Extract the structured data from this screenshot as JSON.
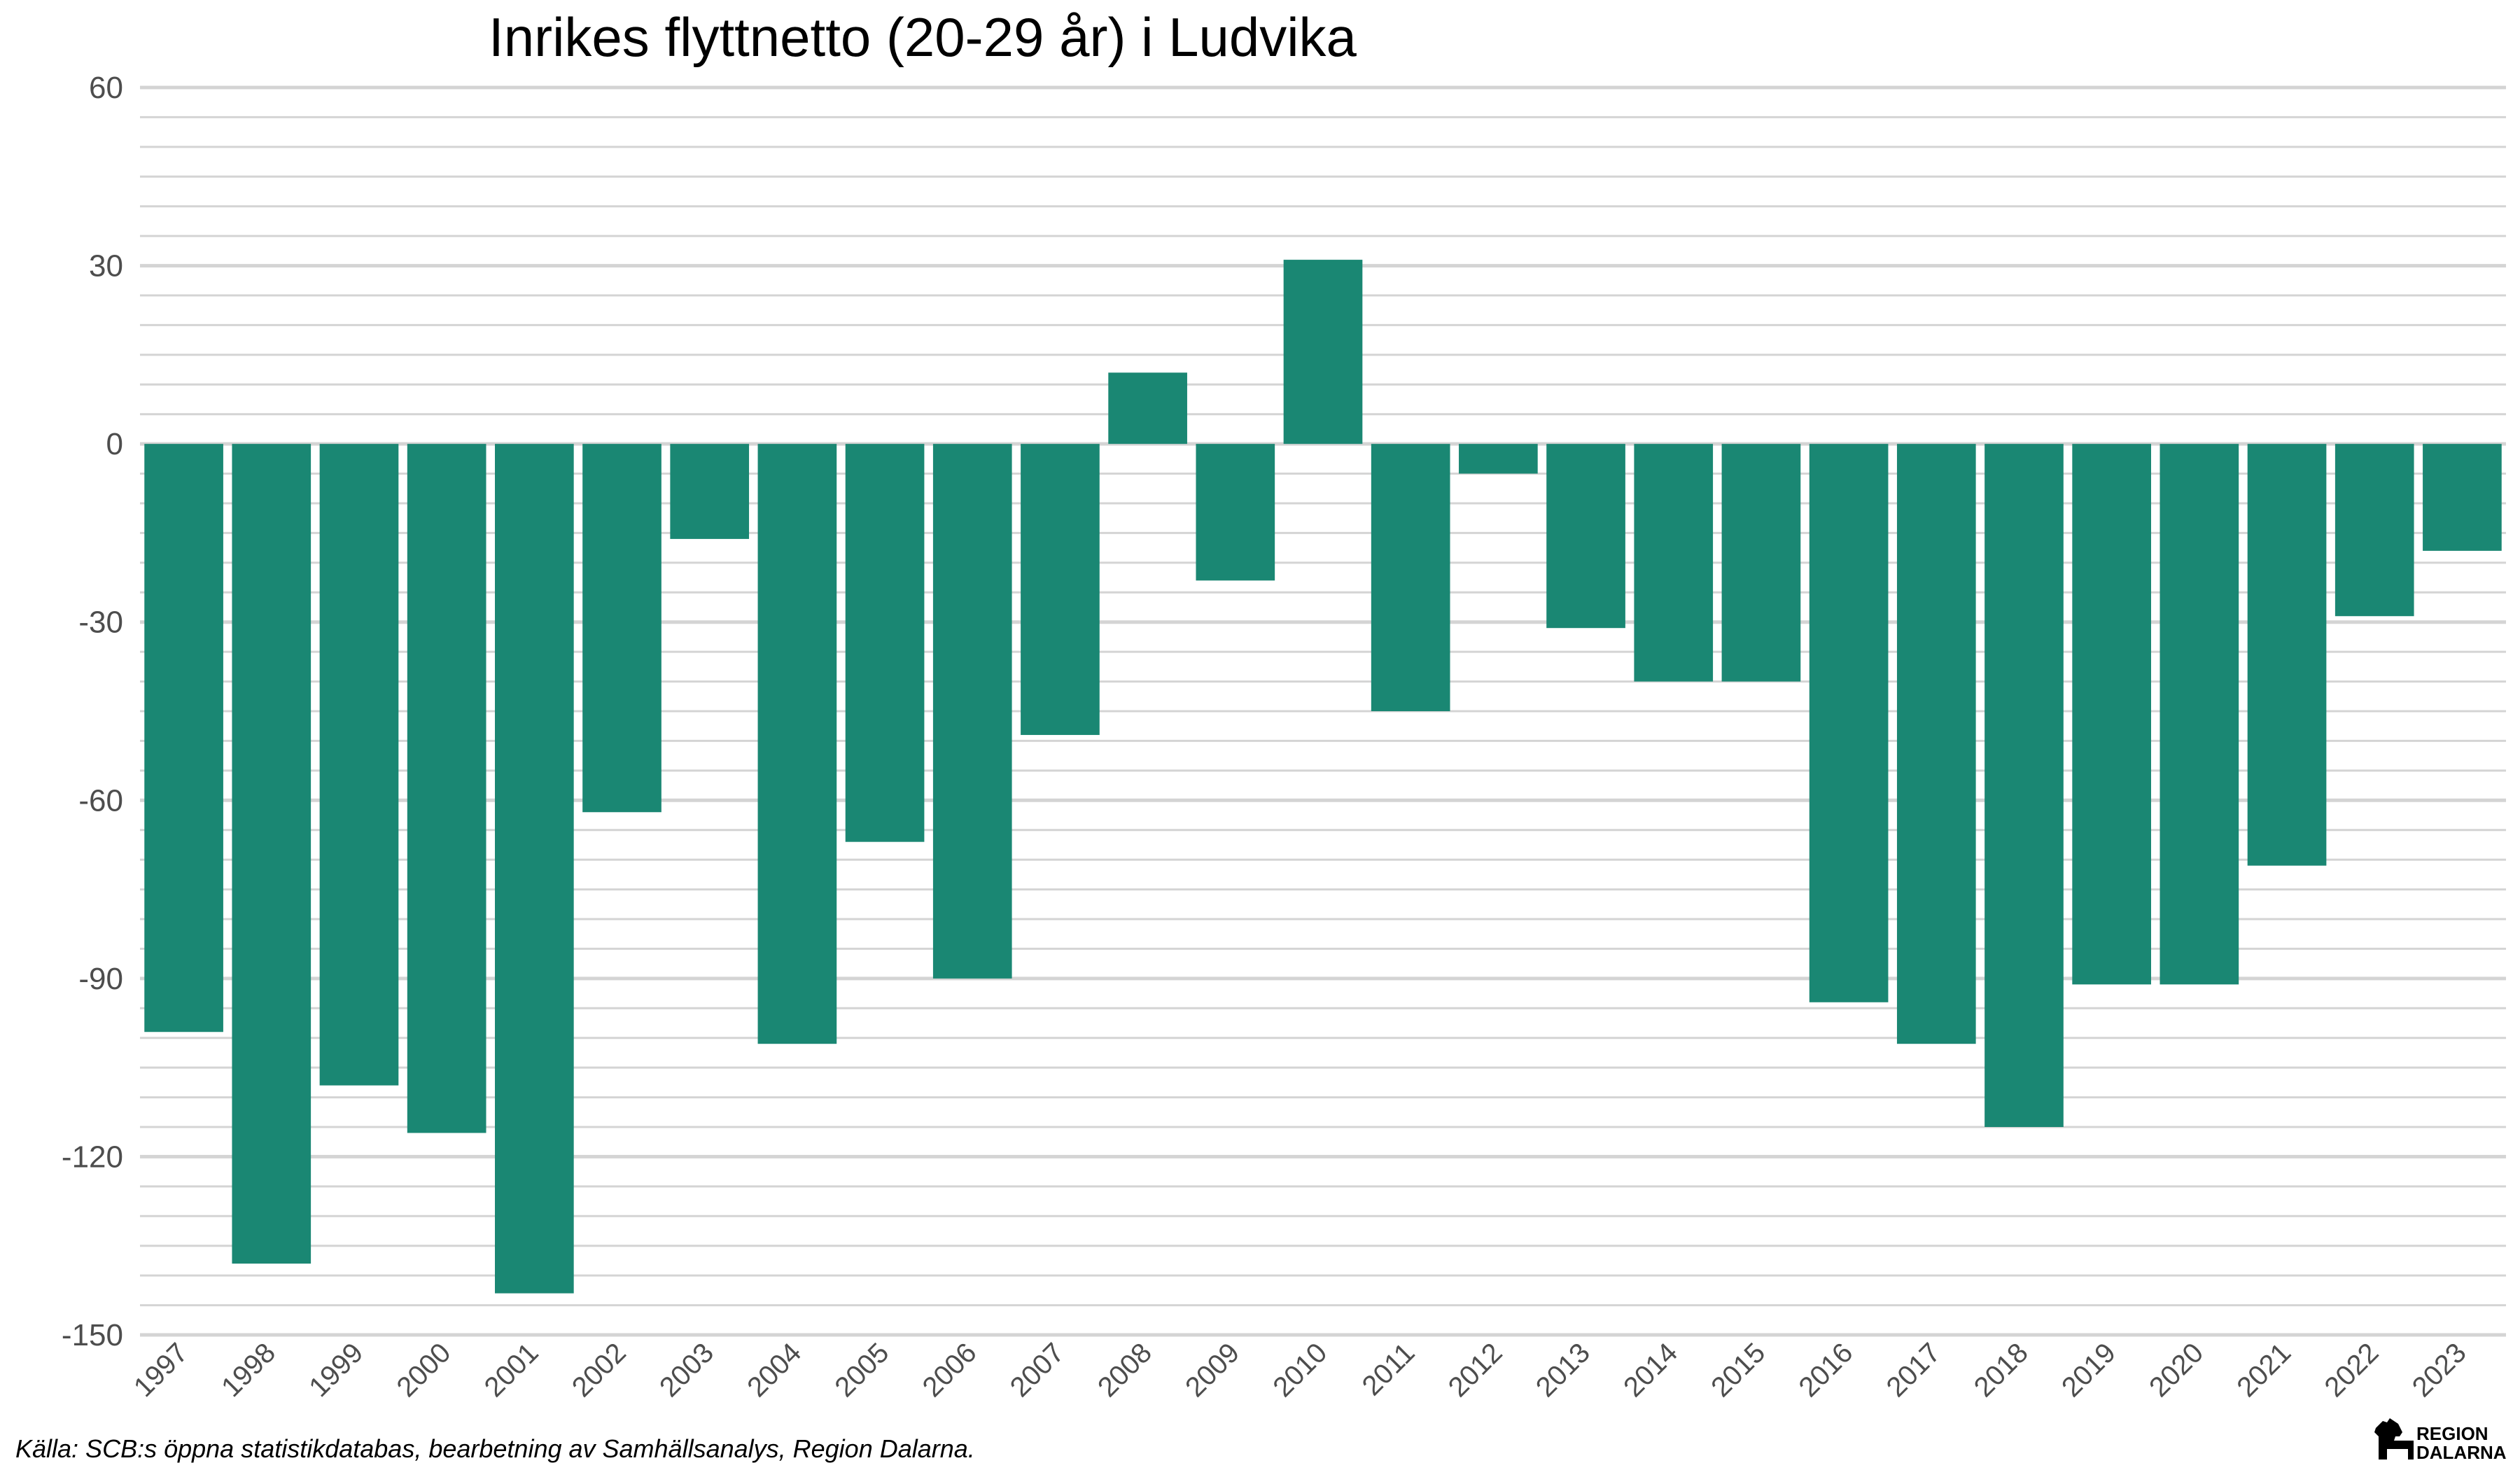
{
  "chart_data": {
    "type": "bar",
    "title": "Inrikes flyttnetto (20-29 år) i Ludvika",
    "xlabel": "",
    "ylabel": "",
    "categories": [
      "1997",
      "1998",
      "1999",
      "2000",
      "2001",
      "2002",
      "2003",
      "2004",
      "2005",
      "2006",
      "2007",
      "2008",
      "2009",
      "2010",
      "2011",
      "2012",
      "2013",
      "2014",
      "2015",
      "2016",
      "2017",
      "2018",
      "2019",
      "2020",
      "2021",
      "2022",
      "2023"
    ],
    "values": [
      -99,
      -138,
      -108,
      -116,
      -143,
      -62,
      -16,
      -101,
      -67,
      -90,
      -49,
      12,
      -23,
      31,
      -45,
      -5,
      -31,
      -40,
      -40,
      -94,
      -101,
      -115,
      -91,
      -91,
      -71,
      -29,
      -18
    ],
    "ylim": [
      -150,
      60
    ],
    "yticks": [
      "60",
      "30",
      "0",
      "-30",
      "-60",
      "-90",
      "-120",
      "-150"
    ],
    "bar_color": "#1a8773",
    "grid": true,
    "legend": "none"
  },
  "caption": "Källa: SCB:s öppna statistikdatabas, bearbetning av Samhällsanalys, Region Dalarna.",
  "logo": {
    "line1": "REGION",
    "line2": "DALARNA",
    "icon": "dala-horse-icon"
  }
}
